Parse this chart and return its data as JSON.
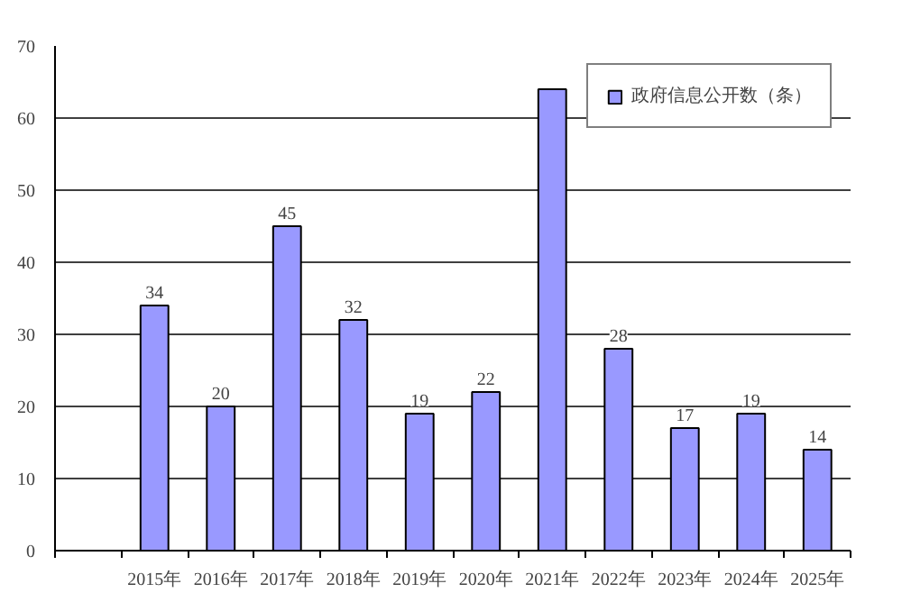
{
  "chart_data": {
    "type": "bar",
    "categories": [
      null,
      "2015年",
      "2016年",
      "2017年",
      "2018年",
      "2019年",
      "2020年",
      "2021年",
      "2022年",
      "2023年",
      "2024年",
      "2025年"
    ],
    "series": [
      {
        "name": "政府信息公开数（条）",
        "color": "#9999ff",
        "values": [
          null,
          34,
          20,
          45,
          32,
          19,
          22,
          64,
          28,
          17,
          19,
          14
        ]
      }
    ],
    "value_labels": [
      null,
      "34",
      "20",
      "45",
      "32",
      "19",
      "22",
      null,
      "28",
      "17",
      "19",
      "14"
    ],
    "ylim": [
      0,
      70
    ],
    "yticks": [
      0,
      10,
      20,
      30,
      40,
      50,
      60,
      70
    ],
    "grid": "y",
    "legend": "top right"
  }
}
